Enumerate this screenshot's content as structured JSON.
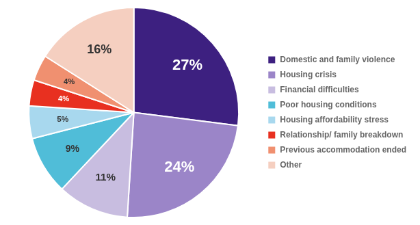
{
  "chart_data": {
    "type": "pie",
    "categories": [
      "Domestic and family violence",
      "Housing crisis",
      "Financial difficulties",
      "Poor housing conditions",
      "Housing affordability stress",
      "Relationship/ family breakdown",
      "Previous accommodation ended",
      "Other"
    ],
    "values": [
      27,
      24,
      11,
      9,
      5,
      4,
      4,
      16
    ],
    "value_labels": [
      "27%",
      "24%",
      "11%",
      "9%",
      "5%",
      "4%",
      "4%",
      "16%"
    ],
    "colors": [
      "#3d2080",
      "#9b85c8",
      "#c8bde0",
      "#50bdd8",
      "#a8d8ee",
      "#e83020",
      "#f09070",
      "#f5cfc0"
    ],
    "data_labels": true,
    "legend": "right"
  }
}
